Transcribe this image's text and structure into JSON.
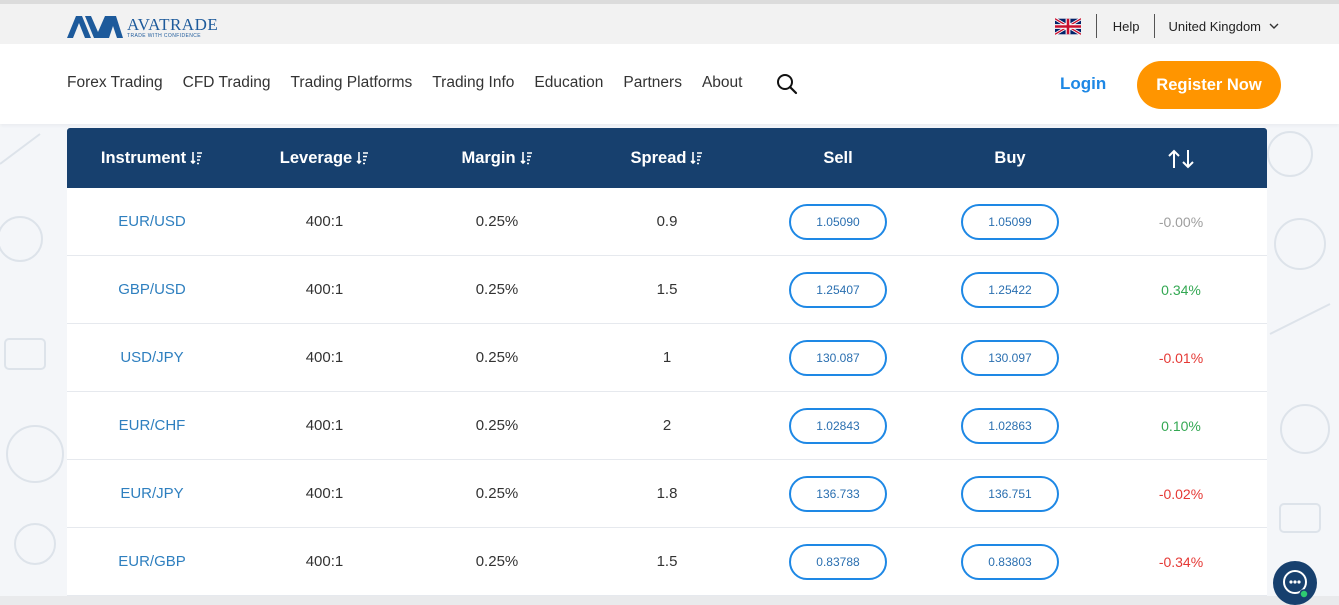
{
  "header": {
    "logo": {
      "name": "AVATRADE",
      "tagline": "TRADE WITH CONFIDENCE"
    },
    "help_label": "Help",
    "country_label": "United Kingdom",
    "flag_icon": "uk-flag-icon"
  },
  "nav": {
    "items": [
      "Forex Trading",
      "CFD Trading",
      "Trading Platforms",
      "Trading Info",
      "Education",
      "Partners",
      "About"
    ],
    "search_icon": "search-icon",
    "login_label": "Login",
    "register_label": "Register Now"
  },
  "colors": {
    "brand_blue": "#1d5a9b",
    "header_navy": "#17406e",
    "accent_orange": "#ff9500",
    "positive": "#34a853",
    "negative": "#e53935",
    "neutral": "#9e9e9e"
  },
  "table": {
    "columns": [
      "Instrument",
      "Leverage",
      "Margin",
      "Spread",
      "Sell",
      "Buy"
    ],
    "rows": [
      {
        "instrument": "EUR/USD",
        "leverage": "400:1",
        "margin": "0.25%",
        "spread": "0.9",
        "sell": "1.05090",
        "buy": "1.05099",
        "change": "-0.00%",
        "trend": "neutral"
      },
      {
        "instrument": "GBP/USD",
        "leverage": "400:1",
        "margin": "0.25%",
        "spread": "1.5",
        "sell": "1.25407",
        "buy": "1.25422",
        "change": "0.34%",
        "trend": "positive"
      },
      {
        "instrument": "USD/JPY",
        "leverage": "400:1",
        "margin": "0.25%",
        "spread": "1",
        "sell": "130.087",
        "buy": "130.097",
        "change": "-0.01%",
        "trend": "negative"
      },
      {
        "instrument": "EUR/CHF",
        "leverage": "400:1",
        "margin": "0.25%",
        "spread": "2",
        "sell": "1.02843",
        "buy": "1.02863",
        "change": "0.10%",
        "trend": "positive"
      },
      {
        "instrument": "EUR/JPY",
        "leverage": "400:1",
        "margin": "0.25%",
        "spread": "1.8",
        "sell": "136.733",
        "buy": "136.751",
        "change": "-0.02%",
        "trend": "negative"
      },
      {
        "instrument": "EUR/GBP",
        "leverage": "400:1",
        "margin": "0.25%",
        "spread": "1.5",
        "sell": "0.83788",
        "buy": "0.83803",
        "change": "-0.34%",
        "trend": "negative"
      }
    ]
  }
}
